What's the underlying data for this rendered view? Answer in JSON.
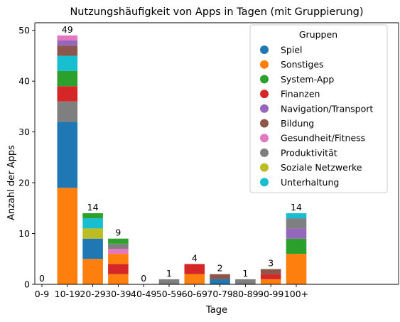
{
  "chart_data": {
    "type": "bar",
    "stacked": true,
    "title": "Nutzungshäufigkeit von Apps in Tagen (mit Gruppierung)",
    "xlabel": "Tage",
    "ylabel": "Anzahl der Apps",
    "ylim": [
      0,
      51.5
    ],
    "yticks": [
      0,
      10,
      20,
      30,
      40,
      50
    ],
    "categories": [
      "0-9",
      "10-19",
      "20-29",
      "30-39",
      "40-49",
      "50-59",
      "60-69",
      "70-79",
      "80-89",
      "90-99",
      "100+"
    ],
    "totals": [
      0,
      49,
      14,
      9,
      0,
      1,
      4,
      2,
      1,
      3,
      14
    ],
    "grid": false,
    "legend": {
      "title": "Gruppen",
      "position": "top-right"
    },
    "series": [
      {
        "name": "Sonstiges",
        "color": "#ff7f0e",
        "values": [
          0,
          19,
          5,
          2,
          0,
          0,
          2,
          0,
          0,
          1,
          6
        ]
      },
      {
        "name": "Spiel",
        "color": "#1f77b4",
        "values": [
          0,
          13,
          4,
          0,
          0,
          0,
          0,
          1,
          0,
          0,
          0
        ]
      },
      {
        "name": "Finanzen",
        "color": "#d62728",
        "values": [
          0,
          0,
          0,
          2,
          0,
          0,
          2,
          0,
          0,
          1,
          0
        ]
      },
      {
        "name": "Bildung",
        "color": "#8c564b",
        "values": [
          0,
          0,
          0,
          0,
          0,
          0,
          0,
          1,
          0,
          0,
          0
        ]
      },
      {
        "name": "Produktivität",
        "color": "#7f7f7f",
        "values": [
          0,
          4,
          0,
          0,
          0,
          1,
          0,
          0,
          1,
          0,
          0
        ]
      },
      {
        "name": "Finanzen",
        "color": "#d62728",
        "values": [
          0,
          3,
          0,
          0,
          0,
          0,
          0,
          0,
          0,
          0,
          0
        ]
      },
      {
        "name": "Sonstiges",
        "color": "#ff7f0e",
        "values": [
          0,
          0,
          0,
          2,
          0,
          0,
          0,
          0,
          0,
          0,
          0
        ]
      },
      {
        "name": "Bildung",
        "color": "#8c564b",
        "values": [
          0,
          0,
          0,
          0,
          0,
          0,
          0,
          0,
          0,
          1,
          0
        ]
      },
      {
        "name": "System-App",
        "color": "#2ca02c",
        "values": [
          0,
          3,
          0,
          0,
          0,
          0,
          0,
          0,
          0,
          0,
          3
        ]
      },
      {
        "name": "Navigation/Transport",
        "color": "#9467bd",
        "values": [
          0,
          0,
          0,
          0,
          0,
          0,
          0,
          0,
          0,
          0,
          2
        ]
      },
      {
        "name": "Soziale Netzwerke",
        "color": "#bcbd22",
        "values": [
          0,
          0,
          2,
          0,
          0,
          0,
          0,
          0,
          0,
          0,
          0
        ]
      },
      {
        "name": "Gesundheit/Fitness",
        "color": "#e377c2",
        "values": [
          0,
          0,
          0,
          1,
          0,
          0,
          0,
          0,
          0,
          0,
          0
        ]
      },
      {
        "name": "Unterhaltung",
        "color": "#17becf",
        "values": [
          0,
          3,
          2,
          0,
          0,
          0,
          0,
          0,
          0,
          0,
          0
        ]
      },
      {
        "name": "Produktivität",
        "color": "#7f7f7f",
        "values": [
          0,
          0,
          0,
          1,
          0,
          0,
          0,
          0,
          0,
          0,
          2
        ]
      },
      {
        "name": "Bildung",
        "color": "#8c564b",
        "values": [
          0,
          2,
          0,
          0,
          0,
          0,
          0,
          0,
          0,
          0,
          0
        ]
      },
      {
        "name": "System-App",
        "color": "#2ca02c",
        "values": [
          0,
          0,
          1,
          1,
          0,
          0,
          0,
          0,
          0,
          0,
          0
        ]
      },
      {
        "name": "Navigation/Transport",
        "color": "#9467bd",
        "values": [
          0,
          1,
          0,
          0,
          0,
          0,
          0,
          0,
          0,
          0,
          0
        ]
      },
      {
        "name": "Gesundheit/Fitness",
        "color": "#e377c2",
        "values": [
          0,
          1,
          0,
          0,
          0,
          0,
          0,
          0,
          0,
          0,
          0
        ]
      },
      {
        "name": "Unterhaltung",
        "color": "#17becf",
        "values": [
          0,
          0,
          0,
          0,
          0,
          0,
          0,
          0,
          0,
          0,
          1
        ]
      }
    ],
    "legend_entries": [
      {
        "name": "Spiel",
        "color": "#1f77b4"
      },
      {
        "name": "Sonstiges",
        "color": "#ff7f0e"
      },
      {
        "name": "System-App",
        "color": "#2ca02c"
      },
      {
        "name": "Finanzen",
        "color": "#d62728"
      },
      {
        "name": "Navigation/Transport",
        "color": "#9467bd"
      },
      {
        "name": "Bildung",
        "color": "#8c564b"
      },
      {
        "name": "Gesundheit/Fitness",
        "color": "#e377c2"
      },
      {
        "name": "Produktivität",
        "color": "#7f7f7f"
      },
      {
        "name": "Soziale Netzwerke",
        "color": "#bcbd22"
      },
      {
        "name": "Unterhaltung",
        "color": "#17becf"
      }
    ]
  }
}
